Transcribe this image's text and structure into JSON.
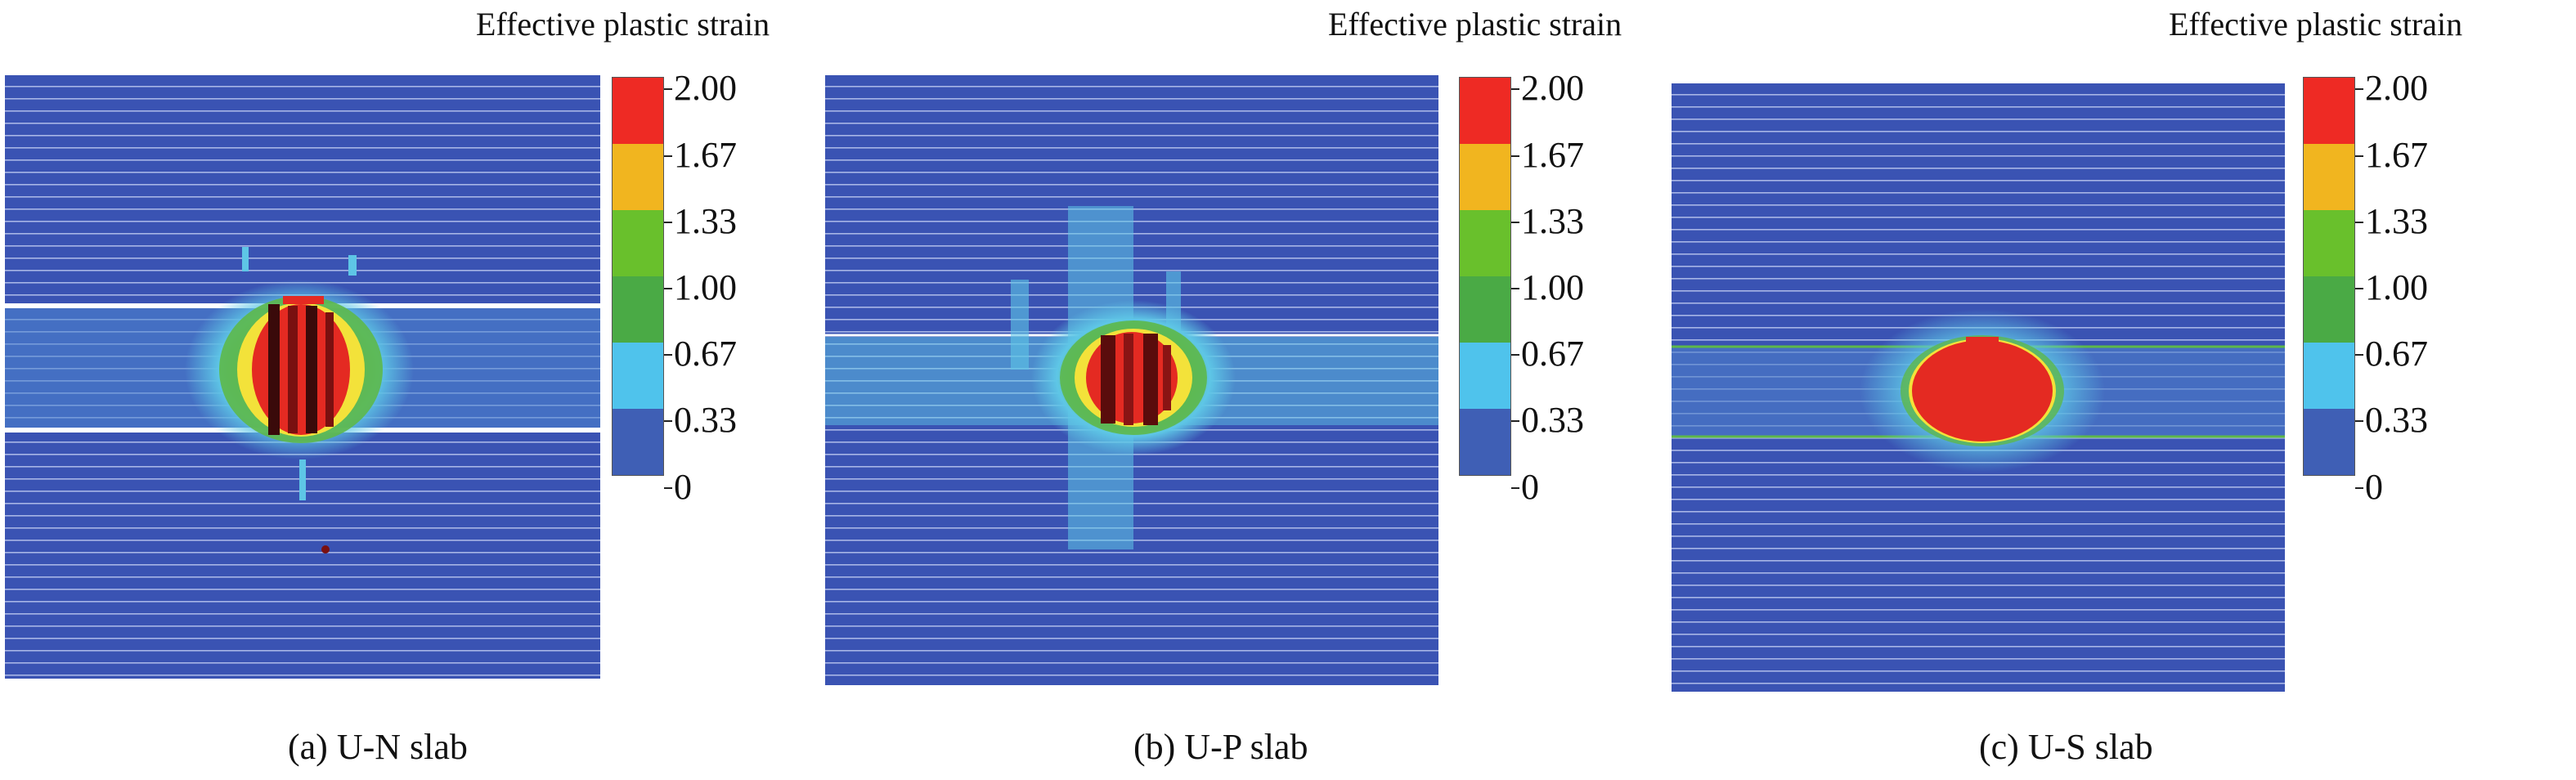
{
  "legend": {
    "title": "Effective plastic strain",
    "ticks": [
      "2.00",
      "1.67",
      "1.33",
      "1.00",
      "0.67",
      "0.33",
      "0"
    ],
    "colors": [
      "#ee2a24",
      "#f1b51f",
      "#69c02c",
      "#4aaa45",
      "#4fc3ec",
      "#3f5fb5"
    ]
  },
  "colors": {
    "background_blue": "#3a53b3",
    "stripe": "#ffffff",
    "light_blue": "#5ec6e6",
    "green": "#5db84a",
    "yellow": "#f3e23a",
    "red": "#e42a22",
    "dark": "#3a0a0a"
  },
  "panels": [
    {
      "id": "a",
      "caption": "(a) U-N slab"
    },
    {
      "id": "b",
      "caption": "(b) U-P slab"
    },
    {
      "id": "c",
      "caption": "(c) U-S slab"
    }
  ]
}
